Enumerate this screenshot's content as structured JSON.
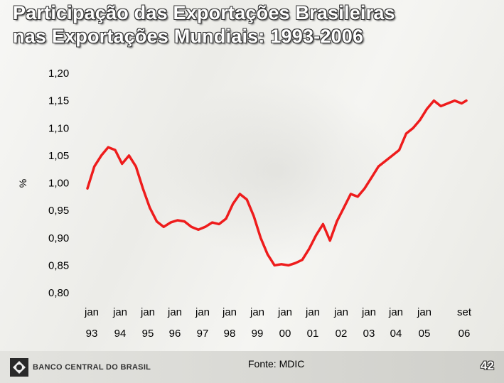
{
  "title_line1": "Participação das Exportações Brasileiras",
  "title_line2": "nas Exportações Mundiais: 1993-2006",
  "source": "Fonte: MDIC",
  "page_number": "42",
  "logo_text": "BANCO CENTRAL DO BRASIL",
  "colors": {
    "line": "#ee1c1c",
    "title_fill": "#ffffff",
    "title_outline": "#333333"
  },
  "chart_data": {
    "type": "line",
    "ylabel": "%",
    "ylim": [
      0.8,
      1.2
    ],
    "yticks": [
      "1,20",
      "1,15",
      "1,10",
      "1,05",
      "1,00",
      "0,95",
      "0,90",
      "0,85",
      "0,80"
    ],
    "xlabels": [
      {
        "month": "jan",
        "year": "93"
      },
      {
        "month": "jan",
        "year": "94"
      },
      {
        "month": "jan",
        "year": "95"
      },
      {
        "month": "jan",
        "year": "96"
      },
      {
        "month": "jan",
        "year": "97"
      },
      {
        "month": "jan",
        "year": "98"
      },
      {
        "month": "jan",
        "year": "99"
      },
      {
        "month": "jan",
        "year": "00"
      },
      {
        "month": "jan",
        "year": "01"
      },
      {
        "month": "jan",
        "year": "02"
      },
      {
        "month": "jan",
        "year": "03"
      },
      {
        "month": "jan",
        "year": "04"
      },
      {
        "month": "jan",
        "year": "05"
      },
      {
        "month": "set",
        "year": "06"
      }
    ],
    "series": [
      {
        "points": [
          [
            1993.0,
            0.99
          ],
          [
            1993.25,
            1.03
          ],
          [
            1993.5,
            1.05
          ],
          [
            1993.75,
            1.065
          ],
          [
            1994.0,
            1.06
          ],
          [
            1994.25,
            1.035
          ],
          [
            1994.5,
            1.05
          ],
          [
            1994.75,
            1.03
          ],
          [
            1995.0,
            0.99
          ],
          [
            1995.25,
            0.955
          ],
          [
            1995.5,
            0.93
          ],
          [
            1995.75,
            0.92
          ],
          [
            1996.0,
            0.928
          ],
          [
            1996.25,
            0.932
          ],
          [
            1996.5,
            0.93
          ],
          [
            1996.75,
            0.92
          ],
          [
            1997.0,
            0.915
          ],
          [
            1997.25,
            0.92
          ],
          [
            1997.5,
            0.928
          ],
          [
            1997.75,
            0.925
          ],
          [
            1998.0,
            0.935
          ],
          [
            1998.25,
            0.962
          ],
          [
            1998.5,
            0.98
          ],
          [
            1998.75,
            0.97
          ],
          [
            1999.0,
            0.94
          ],
          [
            1999.25,
            0.9
          ],
          [
            1999.5,
            0.87
          ],
          [
            1999.75,
            0.85
          ],
          [
            2000.0,
            0.852
          ],
          [
            2000.25,
            0.85
          ],
          [
            2000.5,
            0.854
          ],
          [
            2000.75,
            0.86
          ],
          [
            2001.0,
            0.88
          ],
          [
            2001.25,
            0.905
          ],
          [
            2001.5,
            0.925
          ],
          [
            2001.75,
            0.895
          ],
          [
            2002.0,
            0.93
          ],
          [
            2002.25,
            0.955
          ],
          [
            2002.5,
            0.98
          ],
          [
            2002.75,
            0.975
          ],
          [
            2003.0,
            0.99
          ],
          [
            2003.25,
            1.01
          ],
          [
            2003.5,
            1.03
          ],
          [
            2003.75,
            1.04
          ],
          [
            2004.0,
            1.05
          ],
          [
            2004.25,
            1.06
          ],
          [
            2004.5,
            1.09
          ],
          [
            2004.75,
            1.1
          ],
          [
            2005.0,
            1.115
          ],
          [
            2005.25,
            1.135
          ],
          [
            2005.5,
            1.15
          ],
          [
            2005.75,
            1.14
          ],
          [
            2006.0,
            1.145
          ],
          [
            2006.25,
            1.15
          ],
          [
            2006.5,
            1.145
          ],
          [
            2006.67,
            1.15
          ]
        ]
      }
    ]
  }
}
